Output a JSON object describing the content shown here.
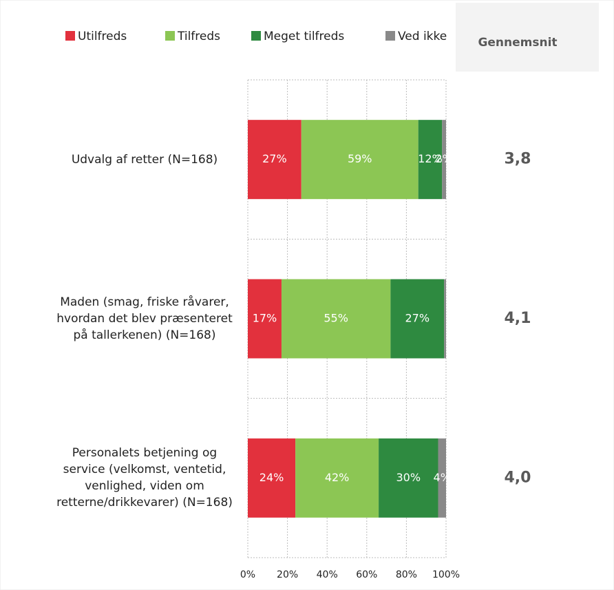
{
  "chart_data": {
    "type": "stacked-bar-horizontal",
    "categories": [
      "Udvalg af retter (N=168)",
      "Maden (smag, friske råvarer, hvordan det blev præsenteret på tallerkenen) (N=168)",
      "Personalets betjening og service (velkomst, ventetid, venlighed, viden om retterne/drikkevarer) (N=168)"
    ],
    "series": [
      {
        "name": "Utilfreds",
        "color": "#e2313d",
        "values": [
          27,
          17,
          24
        ],
        "value_labels": [
          "27%",
          "17%",
          "24%"
        ]
      },
      {
        "name": "Tilfreds",
        "color": "#8cc654",
        "values": [
          59,
          55,
          42
        ],
        "value_labels": [
          "59%",
          "55%",
          "42%"
        ]
      },
      {
        "name": "Meget tilfreds",
        "color": "#2e8a40",
        "values": [
          12,
          27,
          30
        ],
        "value_labels": [
          "12%",
          "27%",
          "30%"
        ]
      },
      {
        "name": "Ved ikke",
        "color": "#898989",
        "values": [
          2,
          1,
          4
        ],
        "value_labels": [
          "2%",
          null,
          "4%"
        ]
      }
    ],
    "xlim": [
      0,
      100
    ],
    "xticks": [
      {
        "value": 0,
        "label": "0%"
      },
      {
        "value": 20,
        "label": "20%"
      },
      {
        "value": 40,
        "label": "40%"
      },
      {
        "value": 60,
        "label": "60%"
      },
      {
        "value": 80,
        "label": "80%"
      },
      {
        "value": 100,
        "label": "100%"
      }
    ],
    "grid": true,
    "legend": "top",
    "average": {
      "title": "Gennemsnit",
      "values": [
        3.8,
        4.1,
        4.0
      ],
      "value_labels": [
        "3,8",
        "4,1",
        "4,0"
      ]
    }
  }
}
